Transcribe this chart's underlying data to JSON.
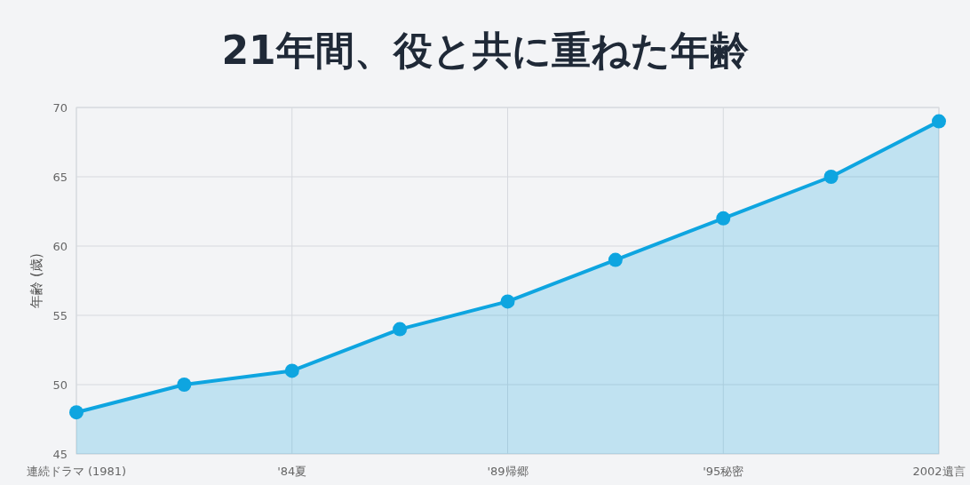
{
  "chart_data": {
    "type": "area",
    "title": "21年間、役と共に重ねた年齢",
    "ylabel": "年齢 (歳)",
    "categories": [
      "連続ドラマ (1981)",
      null,
      "'84夏",
      null,
      "'89帰郷",
      null,
      "'95秘密",
      null,
      "2002遺言"
    ],
    "series": [
      {
        "color": "#0ea5e0",
        "values": [
          48,
          50,
          51,
          54,
          56,
          59,
          62,
          65,
          69
        ]
      }
    ],
    "ylim": [
      45,
      70
    ],
    "yticks": [
      45,
      50,
      55,
      60,
      65,
      70
    ],
    "grid": true,
    "marker": "circle",
    "line_style": "solid"
  }
}
